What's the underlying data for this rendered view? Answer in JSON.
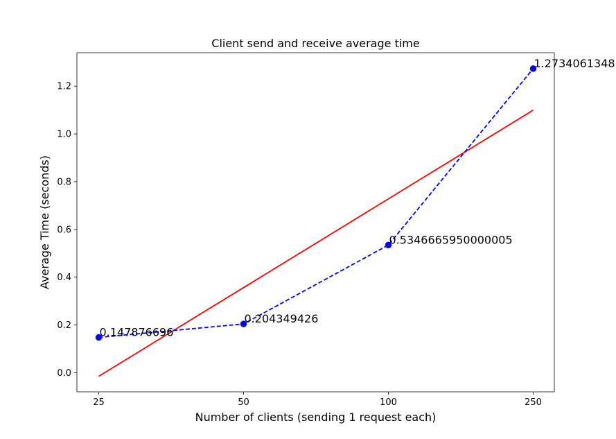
{
  "chart_data": {
    "type": "line",
    "title": "Client send and receive average time",
    "xlabel": "Number of clients (sending 1 request each)",
    "ylabel": "Average Time (seconds)",
    "categories": [
      "25",
      "50",
      "100",
      "250"
    ],
    "ylim": [
      -0.08,
      1.34
    ],
    "yticks": [
      0.0,
      0.2,
      0.4,
      0.6,
      0.8,
      1.0,
      1.2
    ],
    "ytick_labels": [
      "0.0",
      "0.2",
      "0.4",
      "0.6",
      "0.8",
      "1.0",
      "1.2"
    ],
    "grid": true,
    "series": [
      {
        "style": "dashed-with-markers",
        "color": "#0000ff",
        "values": [
          0.147876696,
          0.204349426,
          0.5346665950000005,
          1.2734061348
        ],
        "labels": [
          "0.147876696",
          "0.204349426",
          "0.5346665950000005",
          "1.2734061348"
        ]
      },
      {
        "style": "solid-trend",
        "color": "#ff0000",
        "values": [
          -0.015,
          0.3565,
          0.728,
          1.0995
        ]
      }
    ]
  }
}
